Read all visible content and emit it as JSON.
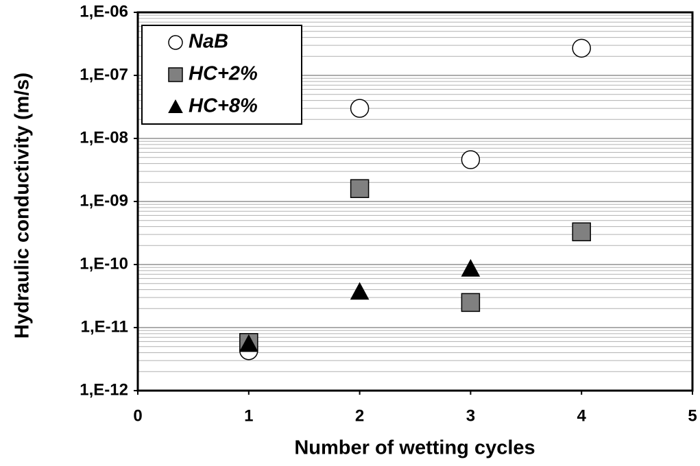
{
  "chart_data": {
    "type": "scatter",
    "x_label": "Number of wetting cycles",
    "y_label": "Hydraulic conductivity (m/s)",
    "xlim": [
      0,
      5
    ],
    "xticks": [
      0,
      1,
      2,
      3,
      4,
      5
    ],
    "ylim": [
      1e-12,
      1e-06
    ],
    "yticks": [
      {
        "value": 1e-12,
        "label": "1,E-12"
      },
      {
        "value": 1e-11,
        "label": "1,E-11"
      },
      {
        "value": 1e-10,
        "label": "1,E-10"
      },
      {
        "value": 1e-09,
        "label": "1,E-09"
      },
      {
        "value": 1e-08,
        "label": "1,E-08"
      },
      {
        "value": 1e-07,
        "label": "1,E-07"
      },
      {
        "value": 1e-06,
        "label": "1,E-06"
      }
    ],
    "y_log": true,
    "grid": true,
    "minor_grid": true,
    "legend": "upper left",
    "series": [
      {
        "name": "NaB",
        "marker": "circle",
        "color": "#ffffff",
        "x": [
          1,
          2,
          3,
          4
        ],
        "values": [
          4.3e-12,
          3e-08,
          4.6e-09,
          2.7e-07
        ]
      },
      {
        "name": "HC+2%",
        "marker": "square",
        "color": "#808080",
        "x": [
          1,
          2,
          3,
          4
        ],
        "values": [
          5.8e-12,
          1.6e-09,
          2.5e-11,
          3.3e-10
        ]
      },
      {
        "name": "HC+8%",
        "marker": "triangle",
        "color": "#000000",
        "x": [
          1,
          2,
          3
        ],
        "values": [
          5.5e-12,
          3.7e-11,
          8.6e-11
        ]
      }
    ]
  }
}
